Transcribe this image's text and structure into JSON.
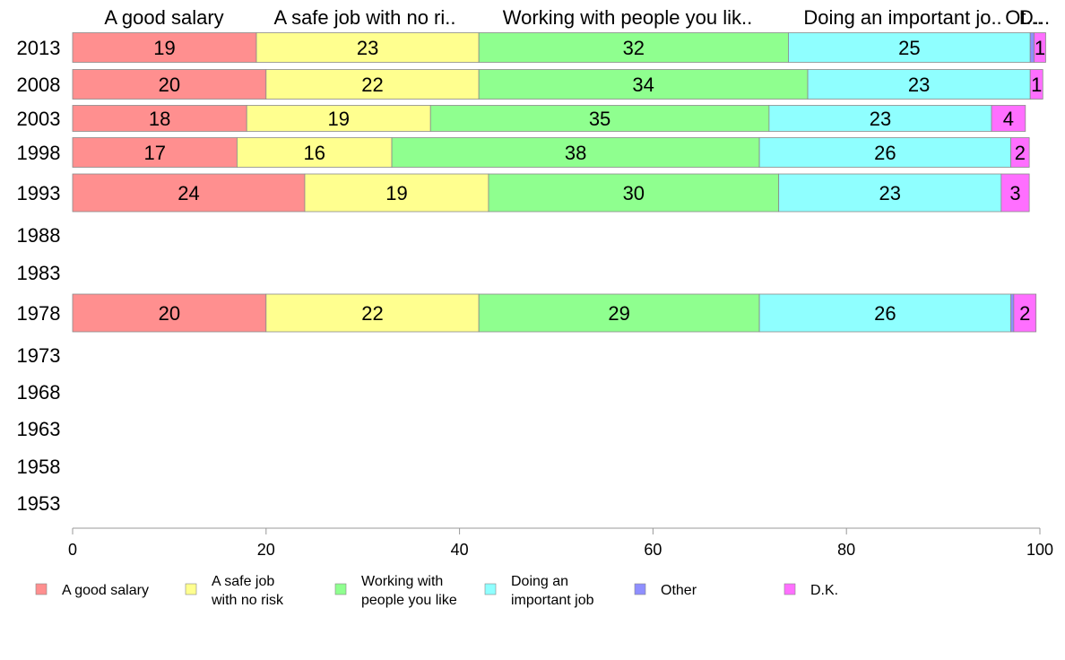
{
  "chart_data": {
    "type": "bar",
    "orientation": "horizontal",
    "stacked": true,
    "title": "",
    "xlabel": "",
    "ylabel": "",
    "xlim": [
      0,
      100
    ],
    "xticks": [
      "0",
      "20",
      "40",
      "60",
      "80",
      "100"
    ],
    "grid": false,
    "legend_position": "bottom",
    "categories": [
      "2013",
      "2008",
      "2003",
      "1998",
      "1993",
      "1988",
      "1983",
      "1978",
      "1973",
      "1968",
      "1963",
      "1958",
      "1953"
    ],
    "column_headers": [
      "A good salary",
      "A safe job with no ri..",
      "Working with people you lik..",
      "Doing an important jo..",
      "Ot...",
      "D..."
    ],
    "series": [
      {
        "name": "A good salary",
        "legend_label": [
          "A good salary"
        ],
        "color": "#ff8f8f",
        "values": [
          19,
          20,
          18,
          17,
          24,
          null,
          null,
          20,
          null,
          null,
          null,
          null,
          null
        ],
        "labels": [
          "19",
          "20",
          "18",
          "17",
          "24",
          "",
          "",
          "20",
          "",
          "",
          "",
          "",
          ""
        ]
      },
      {
        "name": "A safe job with no risk",
        "legend_label": [
          "A safe job",
          "with no risk"
        ],
        "color": "#ffff8f",
        "values": [
          23,
          22,
          19,
          16,
          19,
          null,
          null,
          22,
          null,
          null,
          null,
          null,
          null
        ],
        "labels": [
          "23",
          "22",
          "19",
          "16",
          "19",
          "",
          "",
          "22",
          "",
          "",
          "",
          "",
          ""
        ]
      },
      {
        "name": "Working with people you like",
        "legend_label": [
          "Working with",
          "people you like"
        ],
        "color": "#8fff8f",
        "values": [
          32,
          34,
          35,
          38,
          30,
          null,
          null,
          29,
          null,
          null,
          null,
          null,
          null
        ],
        "labels": [
          "32",
          "34",
          "35",
          "38",
          "30",
          "",
          "",
          "29",
          "",
          "",
          "",
          "",
          ""
        ]
      },
      {
        "name": "Doing an important job",
        "legend_label": [
          "Doing an",
          "important job"
        ],
        "color": "#8fffff",
        "values": [
          25,
          23,
          23,
          26,
          23,
          null,
          null,
          26,
          null,
          null,
          null,
          null,
          null
        ],
        "labels": [
          "25",
          "23",
          "23",
          "26",
          "23",
          "",
          "",
          "26",
          "",
          "",
          "",
          "",
          ""
        ]
      },
      {
        "name": "Other",
        "legend_label": [
          "Other"
        ],
        "color": "#8f8fff",
        "values": [
          0.4,
          0,
          0,
          0,
          0,
          null,
          null,
          0.3,
          null,
          null,
          null,
          null,
          null
        ],
        "labels": [
          "",
          "",
          "",
          "",
          "",
          "",
          "",
          "",
          "",
          "",
          "",
          "",
          ""
        ]
      },
      {
        "name": "D.K.",
        "legend_label": [
          "D.K."
        ],
        "color": "#ff6fff",
        "values": [
          1.2,
          1.3,
          3.5,
          1.9,
          2.9,
          null,
          null,
          2.3,
          null,
          null,
          null,
          null,
          null
        ],
        "labels": [
          "1",
          "1",
          "4",
          "2",
          "3",
          "",
          "",
          "2",
          "",
          "",
          "",
          "",
          ""
        ]
      }
    ]
  }
}
